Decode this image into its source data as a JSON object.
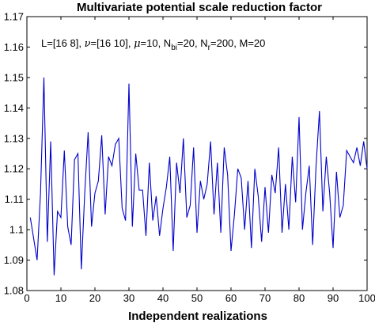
{
  "chart_data": {
    "type": "line",
    "title": "Multivariate potential scale reduction factor",
    "xlabel": "Independent realizations",
    "ylabel": "",
    "xlim": [
      0,
      100
    ],
    "ylim": [
      1.08,
      1.17
    ],
    "grid": false,
    "legend": "none",
    "line_color": "#0000cc",
    "x_ticks": [
      0,
      10,
      20,
      30,
      40,
      50,
      60,
      70,
      80,
      90,
      100
    ],
    "x_tick_labels": [
      "0",
      "10",
      "20",
      "30",
      "40",
      "50",
      "60",
      "70",
      "80",
      "90",
      "100"
    ],
    "y_ticks": [
      1.08,
      1.09,
      1.1,
      1.11,
      1.12,
      1.13,
      1.14,
      1.15,
      1.16,
      1.17
    ],
    "y_tick_labels": [
      "1.08",
      "1.09",
      "1.1",
      "1.11",
      "1.12",
      "1.13",
      "1.14",
      "1.15",
      "1.16",
      "1.17"
    ],
    "annotation": {
      "parts": [
        {
          "text": "L=[16 8], "
        },
        {
          "text": "ν",
          "greek": true
        },
        {
          "text": "=[16 10], "
        },
        {
          "text": "μ",
          "greek": true
        },
        {
          "text": "=10, N"
        },
        {
          "text": "bi",
          "sub": true
        },
        {
          "text": "=20, N"
        },
        {
          "text": "r",
          "sub": true
        },
        {
          "text": "=200, M=20"
        }
      ]
    },
    "series": [
      {
        "x": [
          1,
          2,
          3,
          4,
          5,
          6,
          7,
          8,
          9,
          10,
          11,
          12,
          13,
          14,
          15,
          16,
          17,
          18,
          19,
          20,
          21,
          22,
          23,
          24,
          25,
          26,
          27,
          28,
          29,
          30,
          31,
          32,
          33,
          34,
          35,
          36,
          37,
          38,
          39,
          40,
          41,
          42,
          43,
          44,
          45,
          46,
          47,
          48,
          49,
          50,
          51,
          52,
          53,
          54,
          55,
          56,
          57,
          58,
          59,
          60,
          61,
          62,
          63,
          64,
          65,
          66,
          67,
          68,
          69,
          70,
          71,
          72,
          73,
          74,
          75,
          76,
          77,
          78,
          79,
          80,
          81,
          82,
          83,
          84,
          85,
          86,
          87,
          88,
          89,
          90,
          91,
          92,
          93,
          94,
          95,
          96,
          97,
          98,
          99,
          100
        ],
        "values": [
          1.104,
          1.097,
          1.09,
          1.112,
          1.15,
          1.096,
          1.129,
          1.085,
          1.106,
          1.104,
          1.126,
          1.101,
          1.095,
          1.123,
          1.125,
          1.087,
          1.112,
          1.132,
          1.101,
          1.112,
          1.116,
          1.131,
          1.105,
          1.124,
          1.121,
          1.128,
          1.13,
          1.107,
          1.103,
          1.148,
          1.101,
          1.125,
          1.113,
          1.113,
          1.098,
          1.122,
          1.103,
          1.111,
          1.098,
          1.107,
          1.114,
          1.124,
          1.093,
          1.122,
          1.112,
          1.13,
          1.104,
          1.108,
          1.127,
          1.099,
          1.116,
          1.11,
          1.115,
          1.129,
          1.105,
          1.122,
          1.099,
          1.127,
          1.118,
          1.093,
          1.105,
          1.12,
          1.117,
          1.1,
          1.116,
          1.094,
          1.12,
          1.111,
          1.096,
          1.114,
          1.099,
          1.118,
          1.112,
          1.127,
          1.099,
          1.115,
          1.1,
          1.124,
          1.109,
          1.137,
          1.1,
          1.112,
          1.121,
          1.095,
          1.121,
          1.139,
          1.106,
          1.124,
          1.112,
          1.094,
          1.119,
          1.104,
          1.108,
          1.126,
          1.124,
          1.122,
          1.127,
          1.121,
          1.129,
          1.12
        ]
      }
    ]
  }
}
